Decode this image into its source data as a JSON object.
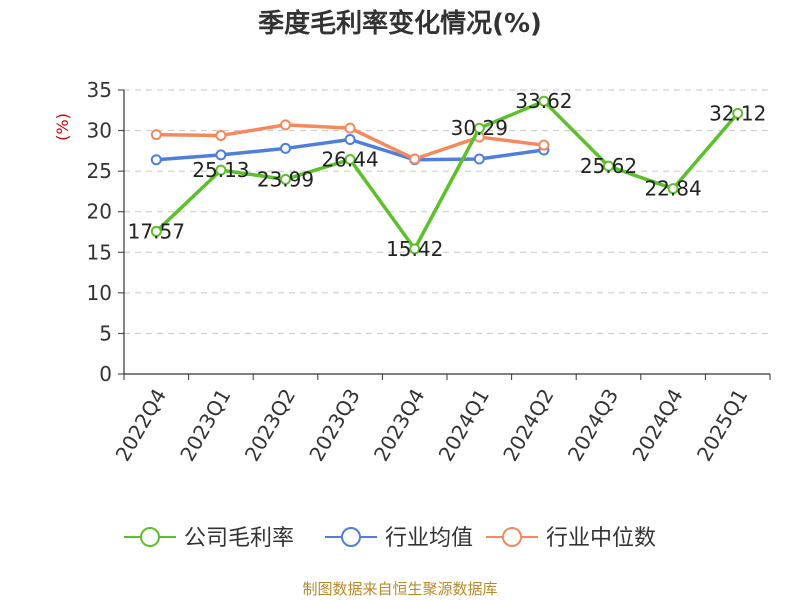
{
  "chart_data": {
    "type": "line",
    "title": "季度毛利率变化情况(%)",
    "ylabel": "(%)",
    "ylim": [
      0,
      35
    ],
    "yticks": [
      0,
      5,
      10,
      15,
      20,
      25,
      30,
      35
    ],
    "categories": [
      "2022Q4",
      "2023Q1",
      "2023Q2",
      "2023Q3",
      "2023Q4",
      "2024Q1",
      "2024Q2",
      "2024Q3",
      "2024Q4",
      "2025Q1"
    ],
    "series": [
      {
        "name": "公司毛利率",
        "color": "#5cc02a",
        "values": [
          17.57,
          25.13,
          23.99,
          26.44,
          15.42,
          30.29,
          33.62,
          25.62,
          22.84,
          32.12
        ],
        "labels": [
          "17.57",
          "25.13",
          "23.99",
          "26.44",
          "15.42",
          "30.29",
          "33.62",
          "25.62",
          "22.84",
          "32.12"
        ]
      },
      {
        "name": "行业均值",
        "color": "#4f7fdb",
        "values": [
          26.4,
          27.0,
          27.8,
          28.9,
          26.4,
          26.5,
          27.6,
          null,
          null,
          null
        ]
      },
      {
        "name": "行业中位数",
        "color": "#f5895c",
        "values": [
          29.5,
          29.4,
          30.7,
          30.3,
          26.5,
          29.2,
          28.2,
          null,
          null,
          null
        ]
      }
    ],
    "grid": true,
    "legend_position": "bottom",
    "label_color": "#cc0000"
  },
  "source_text": "制图数据来自恒生聚源数据库",
  "source_color": "#b8892a"
}
